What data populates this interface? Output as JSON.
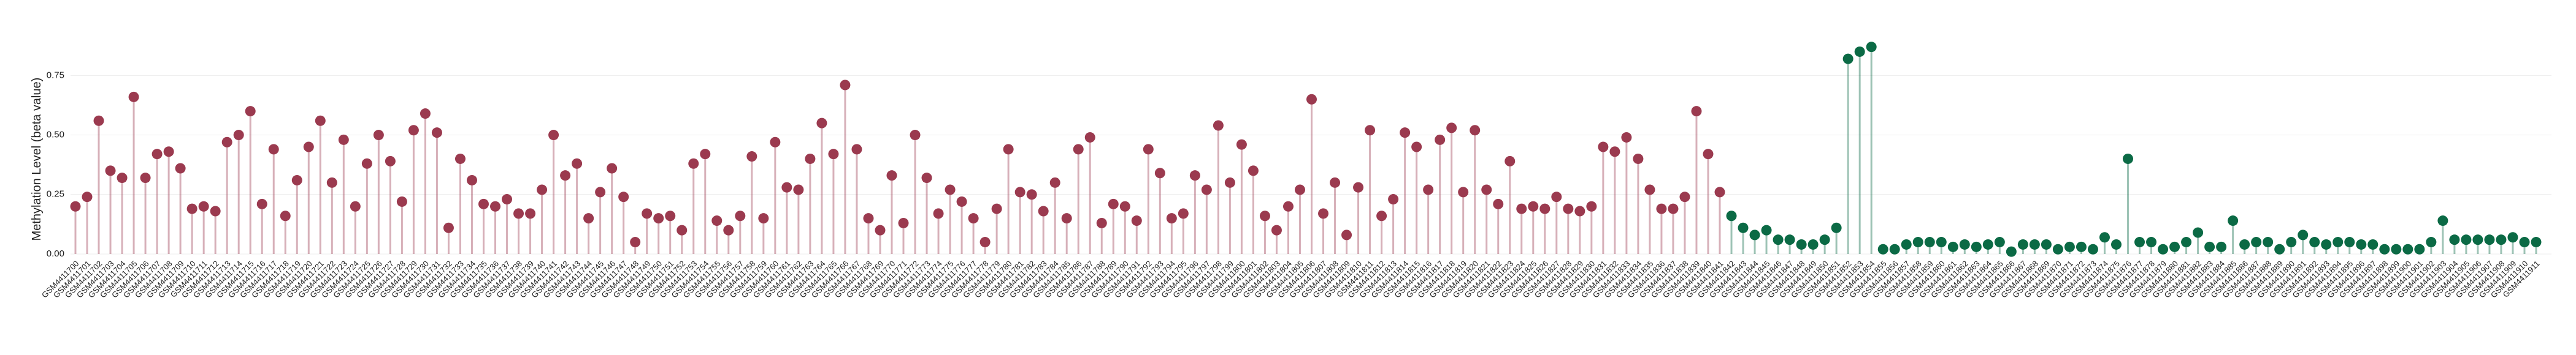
{
  "chart_data": {
    "type": "lollipop",
    "ylabel": "Methylation Level (beta value)",
    "ylim": [
      0,
      0.9
    ],
    "yticks": [
      {
        "value": 0,
        "label": "0.00"
      },
      {
        "value": 0.25,
        "label": "0.25"
      },
      {
        "value": 0.5,
        "label": "0.50"
      },
      {
        "value": 0.75,
        "label": "0.75"
      }
    ],
    "grid": true,
    "categories": [
      "GSM4411700",
      "GSM4411701",
      "GSM4411702",
      "GSM4411703",
      "GSM4411704",
      "GSM4411705",
      "GSM4411706",
      "GSM4411707",
      "GSM4411708",
      "GSM4411709",
      "GSM4411710",
      "GSM4411711",
      "GSM4411712",
      "GSM4411713",
      "GSM4411714",
      "GSM4411715",
      "GSM4411716",
      "GSM4411717",
      "GSM4411718",
      "GSM4411719",
      "GSM4411720",
      "GSM4411721",
      "GSM4411722",
      "GSM4411723",
      "GSM4411724",
      "GSM4411725",
      "GSM4411726",
      "GSM4411727",
      "GSM4411728",
      "GSM4411729",
      "GSM4411730",
      "GSM4411731",
      "GSM4411732",
      "GSM4411733",
      "GSM4411734",
      "GSM4411735",
      "GSM4411736",
      "GSM4411737",
      "GSM4411738",
      "GSM4411739",
      "GSM4411740",
      "GSM4411741",
      "GSM4411742",
      "GSM4411743",
      "GSM4411744",
      "GSM4411745",
      "GSM4411746",
      "GSM4411747",
      "GSM4411748",
      "GSM4411749",
      "GSM4411750",
      "GSM4411751",
      "GSM4411752",
      "GSM4411753",
      "GSM4411754",
      "GSM4411755",
      "GSM4411756",
      "GSM4411757",
      "GSM4411758",
      "GSM4411759",
      "GSM4411760",
      "GSM4411761",
      "GSM4411762",
      "GSM4411763",
      "GSM4411764",
      "GSM4411765",
      "GSM4411766",
      "GSM4411767",
      "GSM4411768",
      "GSM4411769",
      "GSM4411770",
      "GSM4411771",
      "GSM4411772",
      "GSM4411773",
      "GSM4411774",
      "GSM4411775",
      "GSM4411776",
      "GSM4411777",
      "GSM4411778",
      "GSM4411779",
      "GSM4411780",
      "GSM4411781",
      "GSM4411782",
      "GSM4411783",
      "GSM4411784",
      "GSM4411785",
      "GSM4411786",
      "GSM4411787",
      "GSM4411788",
      "GSM4411789",
      "GSM4411790",
      "GSM4411791",
      "GSM4411792",
      "GSM4411793",
      "GSM4411794",
      "GSM4411795",
      "GSM4411796",
      "GSM4411797",
      "GSM4411798",
      "GSM4411799",
      "GSM4411800",
      "GSM4411801",
      "GSM4411802",
      "GSM4411803",
      "GSM4411804",
      "GSM4411805",
      "GSM4411806",
      "GSM4411807",
      "GSM4411808",
      "GSM4411809",
      "GSM4411810",
      "GSM4411811",
      "GSM4411812",
      "GSM4411813",
      "GSM4411814",
      "GSM4411815",
      "GSM4411816",
      "GSM4411817",
      "GSM4411818",
      "GSM4411819",
      "GSM4411820",
      "GSM4411821",
      "GSM4411822",
      "GSM4411823",
      "GSM4411824",
      "GSM4411825",
      "GSM4411826",
      "GSM4411827",
      "GSM4411828",
      "GSM4411829",
      "GSM4411830",
      "GSM4411831",
      "GSM4411832",
      "GSM4411833",
      "GSM4411834",
      "GSM4411835",
      "GSM4411836",
      "GSM4411837",
      "GSM4411838",
      "GSM4411839",
      "GSM4411840",
      "GSM4411841",
      "GSM4411842",
      "GSM4411843",
      "GSM4411844",
      "GSM4411845",
      "GSM4411846",
      "GSM4411847",
      "GSM4411848",
      "GSM4411849",
      "GSM4411850",
      "GSM4411851",
      "GSM4411852",
      "GSM4411853",
      "GSM4411854",
      "GSM4411855",
      "GSM4411856",
      "GSM4411857",
      "GSM4411858",
      "GSM4411859",
      "GSM4411860",
      "GSM4411861",
      "GSM4411862",
      "GSM4411863",
      "GSM4411864",
      "GSM4411865",
      "GSM4411866",
      "GSM4411867",
      "GSM4411868",
      "GSM4411869",
      "GSM4411870",
      "GSM4411871",
      "GSM4411872",
      "GSM4411873",
      "GSM4411874",
      "GSM4411875",
      "GSM4411876",
      "GSM4411877",
      "GSM4411878",
      "GSM4411879",
      "GSM4411880",
      "GSM4411881",
      "GSM4411882",
      "GSM4411883",
      "GSM4411884",
      "GSM4411885",
      "GSM4411886",
      "GSM4411887",
      "GSM4411888",
      "GSM4411889",
      "GSM4411890",
      "GSM4411891",
      "GSM4411892",
      "GSM4411893",
      "GSM4411894",
      "GSM4411895",
      "GSM4411896",
      "GSM4411897",
      "GSM4411898",
      "GSM4411899",
      "GSM4411900",
      "GSM4411901",
      "GSM4411902",
      "GSM4411903",
      "GSM4411904",
      "GSM4411905",
      "GSM4411906",
      "GSM4411907",
      "GSM4411908",
      "GSM4411909",
      "GSM4411910",
      "GSM4411911"
    ],
    "series": [
      {
        "color": "#9b3a4f",
        "values": [
          0.2,
          0.24,
          0.56,
          0.35,
          0.32,
          0.66,
          0.32,
          0.42,
          0.43,
          0.36,
          0.19,
          0.2,
          0.18,
          0.47,
          0.5,
          0.6,
          0.21,
          0.44,
          0.16,
          0.31,
          0.45,
          0.56,
          0.3,
          0.48,
          0.2,
          0.38,
          0.5,
          0.39,
          0.22,
          0.52,
          0.59,
          0.51,
          0.11,
          0.4,
          0.31,
          0.21,
          0.2,
          0.23,
          0.17,
          0.17,
          0.27,
          0.5,
          0.33,
          0.38,
          0.15,
          0.26,
          0.36,
          0.24,
          0.05,
          0.17,
          0.15,
          0.16,
          0.1,
          0.38,
          0.42,
          0.14,
          0.1,
          0.16,
          0.41,
          0.15,
          0.47,
          0.28,
          0.27,
          0.4,
          0.55,
          0.42,
          0.71,
          0.44,
          0.15,
          0.1,
          0.33,
          0.13,
          0.5,
          0.32,
          0.17,
          0.27,
          0.22,
          0.15,
          0.05,
          0.19,
          0.44,
          0.26,
          0.25,
          0.18,
          0.3,
          0.15,
          0.44,
          0.49,
          0.13,
          0.21,
          0.2,
          0.14,
          0.44,
          0.34,
          0.15,
          0.17,
          0.33,
          0.27,
          0.54,
          0.3,
          0.46,
          0.35,
          0.16,
          0.1,
          0.2,
          0.27,
          0.65,
          0.17,
          0.3,
          0.08,
          0.28,
          0.52,
          0.16,
          0.23,
          0.51,
          0.45,
          0.27,
          0.48,
          0.53,
          0.26,
          0.52,
          0.27,
          0.21,
          0.39,
          0.19,
          0.2,
          0.19,
          0.24,
          0.19,
          0.18,
          0.2,
          0.45,
          0.43,
          0.49,
          0.4,
          0.27,
          0.19,
          0.19,
          0.24,
          0.6,
          0.42,
          0.26,
          null,
          null,
          null,
          null,
          null,
          null,
          null,
          null,
          null,
          null,
          null,
          null,
          null,
          null,
          null,
          null,
          null,
          null,
          null,
          null,
          null,
          null,
          null,
          null,
          null,
          null,
          null,
          null,
          null,
          null,
          null,
          null,
          null,
          null,
          null,
          null,
          null,
          null,
          null,
          null,
          null,
          null,
          null,
          null,
          null,
          null,
          null,
          null,
          null,
          null,
          null,
          null,
          null,
          null,
          null,
          null,
          null,
          null,
          null,
          null,
          null,
          null,
          null,
          null,
          null,
          null,
          null,
          null,
          null,
          null
        ]
      },
      {
        "color": "#0b6a45",
        "values": [
          null,
          null,
          null,
          null,
          null,
          null,
          null,
          null,
          null,
          null,
          null,
          null,
          null,
          null,
          null,
          null,
          null,
          null,
          null,
          null,
          null,
          null,
          null,
          null,
          null,
          null,
          null,
          null,
          null,
          null,
          null,
          null,
          null,
          null,
          null,
          null,
          null,
          null,
          null,
          null,
          null,
          null,
          null,
          null,
          null,
          null,
          null,
          null,
          null,
          null,
          null,
          null,
          null,
          null,
          null,
          null,
          null,
          null,
          null,
          null,
          null,
          null,
          null,
          null,
          null,
          null,
          null,
          null,
          null,
          null,
          null,
          null,
          null,
          null,
          null,
          null,
          null,
          null,
          null,
          null,
          null,
          null,
          null,
          null,
          null,
          null,
          null,
          null,
          null,
          null,
          null,
          null,
          null,
          null,
          null,
          null,
          null,
          null,
          null,
          null,
          null,
          null,
          null,
          null,
          null,
          null,
          null,
          null,
          null,
          null,
          null,
          null,
          null,
          null,
          null,
          null,
          null,
          null,
          null,
          null,
          null,
          null,
          null,
          null,
          null,
          null,
          null,
          null,
          null,
          null,
          null,
          null,
          null,
          null,
          null,
          null,
          null,
          null,
          null,
          null,
          null,
          null,
          0.16,
          0.11,
          0.08,
          0.1,
          0.06,
          0.06,
          0.04,
          0.04,
          0.06,
          0.11,
          0.82,
          0.85,
          0.87,
          0.02,
          0.02,
          0.04,
          0.05,
          0.05,
          0.05,
          0.03,
          0.04,
          0.03,
          0.04,
          0.05,
          0.01,
          0.04,
          0.04,
          0.04,
          0.02,
          0.03,
          0.03,
          0.02,
          0.07,
          0.04,
          0.4,
          0.05,
          0.05,
          0.02,
          0.03,
          0.05,
          0.09,
          0.03,
          0.03,
          0.14,
          0.04,
          0.05,
          0.05,
          0.02,
          0.05,
          0.08,
          0.05,
          0.04,
          0.05,
          0.05,
          0.04,
          0.04,
          0.02,
          0.02,
          0.02,
          0.02,
          0.05,
          0.14,
          0.06,
          0.06,
          0.06,
          0.06,
          0.06,
          0.07,
          0.05,
          0.05
        ]
      }
    ]
  }
}
